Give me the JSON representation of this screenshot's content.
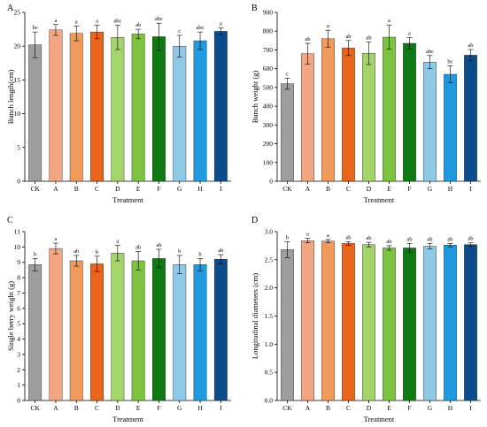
{
  "colors": [
    "#9e9e9e",
    "#f4a582",
    "#f09a5c",
    "#e8651a",
    "#a5d46a",
    "#7cc440",
    "#0f7a12",
    "#8ecae6",
    "#1f9ae0",
    "#0b4c8c"
  ],
  "chart_data": [
    {
      "type": "bar",
      "panel": "A",
      "categories": [
        "CK",
        "A",
        "B",
        "C",
        "D",
        "E",
        "F",
        "G",
        "H",
        "I"
      ],
      "values": [
        20.2,
        22.4,
        21.9,
        22.1,
        21.3,
        21.8,
        21.4,
        20.0,
        20.8,
        22.2
      ],
      "errors": [
        1.9,
        0.8,
        1.1,
        1.0,
        1.8,
        0.7,
        2.0,
        1.6,
        1.3,
        0.5
      ],
      "labels": [
        "bc",
        "a",
        "a",
        "a",
        "abc",
        "ab",
        "abc",
        "c",
        "abc",
        "a"
      ],
      "xlabel": "Treatment",
      "ylabel": "Bunch length(cm)",
      "ylim": [
        0,
        25
      ],
      "yticks": [
        0,
        5,
        10,
        15,
        20,
        25
      ]
    },
    {
      "type": "bar",
      "panel": "B",
      "categories": [
        "CK",
        "A",
        "B",
        "C",
        "D",
        "E",
        "F",
        "G",
        "H",
        "I"
      ],
      "values": [
        520,
        680,
        760,
        710,
        682,
        768,
        735,
        635,
        570,
        672
      ],
      "errors": [
        30,
        55,
        45,
        40,
        60,
        65,
        30,
        35,
        45,
        30
      ],
      "labels": [
        "c",
        "ab",
        "a",
        "ab",
        "ab",
        "a",
        "a",
        "abc",
        "bc",
        "ab"
      ],
      "xlabel": "Treatment",
      "ylabel": "Bunch weight (g)",
      "ylim": [
        0,
        900
      ],
      "yticks": [
        0,
        100,
        200,
        300,
        400,
        500,
        600,
        700,
        800,
        900
      ]
    },
    {
      "type": "bar",
      "panel": "C",
      "categories": [
        "CK",
        "A",
        "B",
        "C",
        "D",
        "E",
        "F",
        "G",
        "H",
        "I"
      ],
      "values": [
        8.85,
        9.9,
        9.1,
        8.9,
        9.6,
        9.1,
        9.25,
        8.85,
        8.85,
        9.2
      ],
      "errors": [
        0.4,
        0.35,
        0.35,
        0.5,
        0.5,
        0.6,
        0.6,
        0.6,
        0.4,
        0.3
      ],
      "labels": [
        "b",
        "a",
        "ab",
        "b",
        "a",
        "ab",
        "ab",
        "b",
        "b",
        "ab"
      ],
      "xlabel": "Treatment",
      "ylabel": "Single berry weight (g)",
      "ylim": [
        0,
        11
      ],
      "yticks": [
        0,
        1,
        2,
        3,
        4,
        5,
        6,
        7,
        8,
        9,
        10,
        11
      ]
    },
    {
      "type": "bar",
      "panel": "D",
      "categories": [
        "CK",
        "A",
        "B",
        "C",
        "D",
        "E",
        "F",
        "G",
        "H",
        "I"
      ],
      "values": [
        2.68,
        2.84,
        2.83,
        2.79,
        2.77,
        2.71,
        2.71,
        2.74,
        2.76,
        2.77
      ],
      "errors": [
        0.14,
        0.04,
        0.03,
        0.03,
        0.04,
        0.04,
        0.08,
        0.05,
        0.03,
        0.03
      ],
      "labels": [
        "b",
        "a",
        "a",
        "ab",
        "ab",
        "ab",
        "ab",
        "ab",
        "ab",
        "ab"
      ],
      "xlabel": "Treatment",
      "ylabel": "Longitudinal diameters (cm)",
      "ylim": [
        0,
        3.0
      ],
      "yticks": [
        "0.0",
        "0.5",
        "1.0",
        "1.5",
        "2.0",
        "2.5",
        "3.0"
      ]
    }
  ]
}
